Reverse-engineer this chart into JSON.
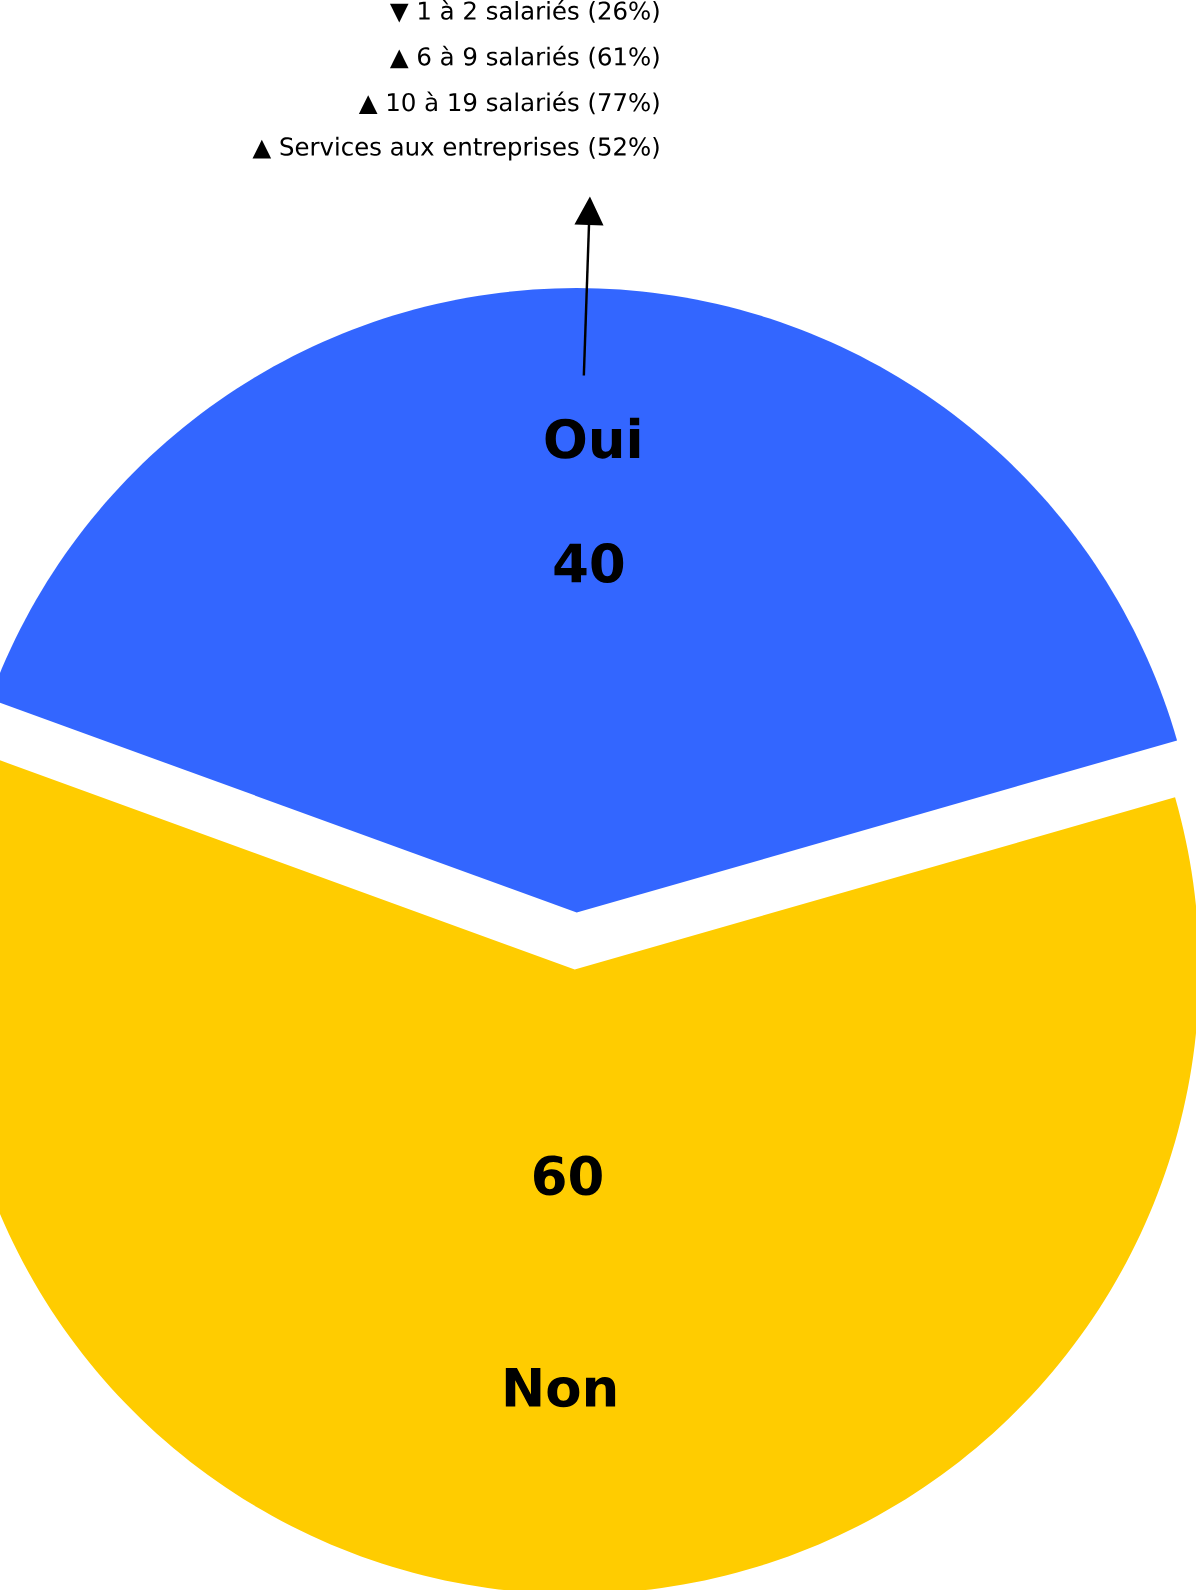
{
  "chart_data": {
    "type": "pie",
    "categories": [
      "Oui",
      "Non"
    ],
    "values": [
      40,
      60
    ],
    "colors": [
      "#3366ff",
      "#ffcc00"
    ],
    "data_labels": true,
    "annotations": [
      "▼ 1 à 2 salariés (26%)",
      "▲ 6 à 9 salariés (61%)",
      "▲ 10 à 19 salariés (77%)",
      "▲ Services aux entreprises (52%)"
    ]
  }
}
